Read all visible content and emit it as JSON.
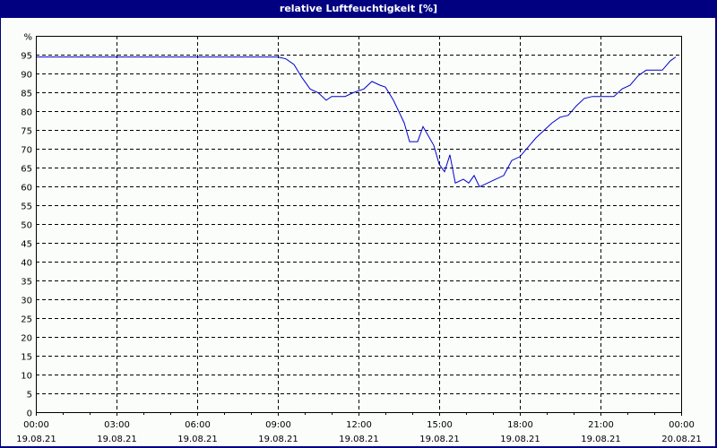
{
  "window": {
    "title": "relative Luftfeuchtigkeit [%]"
  },
  "colors": {
    "frame": "#000080",
    "background": "#fbfdfb",
    "line": "#0000cc",
    "grid": "#000000"
  },
  "chart_data": {
    "type": "line",
    "title": "relative Luftfeuchtigkeit [%]",
    "xlabel": "",
    "ylabel": "%",
    "ylim": [
      0,
      100
    ],
    "xlim": [
      "19.08.21 00:00",
      "20.08.21 00:00"
    ],
    "grid": true,
    "legend": "none",
    "y_ticks": [
      "0",
      "5",
      "10",
      "15",
      "20",
      "25",
      "30",
      "35",
      "40",
      "45",
      "50",
      "55",
      "60",
      "65",
      "70",
      "75",
      "80",
      "85",
      "90",
      "95",
      "%"
    ],
    "x_ticks": [
      {
        "time": "00:00",
        "date": "19.08.21"
      },
      {
        "time": "03:00",
        "date": "19.08.21"
      },
      {
        "time": "06:00",
        "date": "19.08.21"
      },
      {
        "time": "09:00",
        "date": "19.08.21"
      },
      {
        "time": "12:00",
        "date": "19.08.21"
      },
      {
        "time": "15:00",
        "date": "19.08.21"
      },
      {
        "time": "18:00",
        "date": "19.08.21"
      },
      {
        "time": "21:00",
        "date": "19.08.21"
      },
      {
        "time": "00:00",
        "date": "20.08.21"
      }
    ],
    "series": [
      {
        "name": "relative Luftfeuchtigkeit",
        "x_hours": [
          0,
          9.0,
          9.3,
          9.6,
          9.9,
          10.2,
          10.5,
          10.8,
          11.0,
          11.2,
          11.5,
          11.8,
          12.2,
          12.5,
          12.8,
          13.0,
          13.3,
          13.5,
          13.7,
          13.9,
          14.2,
          14.4,
          14.8,
          15.0,
          15.2,
          15.4,
          15.6,
          15.9,
          16.1,
          16.3,
          16.5,
          16.8,
          17.1,
          17.4,
          17.7,
          18.0,
          18.3,
          18.6,
          18.9,
          19.2,
          19.5,
          19.8,
          20.1,
          20.4,
          20.7,
          21.0,
          21.5,
          21.8,
          22.1,
          22.4,
          22.7,
          23.0,
          23.3,
          23.6,
          23.8
        ],
        "values": [
          94.5,
          94.5,
          94,
          92.5,
          89,
          86,
          85,
          83,
          84,
          84,
          84,
          85,
          86,
          88,
          87,
          86.5,
          83,
          80,
          77,
          72,
          72,
          76,
          71,
          66,
          64,
          68.5,
          61,
          62,
          61,
          63,
          60,
          61,
          62,
          63,
          67,
          68,
          70.5,
          73,
          75,
          77,
          78.5,
          79,
          81.5,
          83.5,
          84,
          84,
          84,
          86,
          87,
          89.5,
          91,
          91,
          91,
          93.5,
          94.5
        ]
      }
    ]
  }
}
